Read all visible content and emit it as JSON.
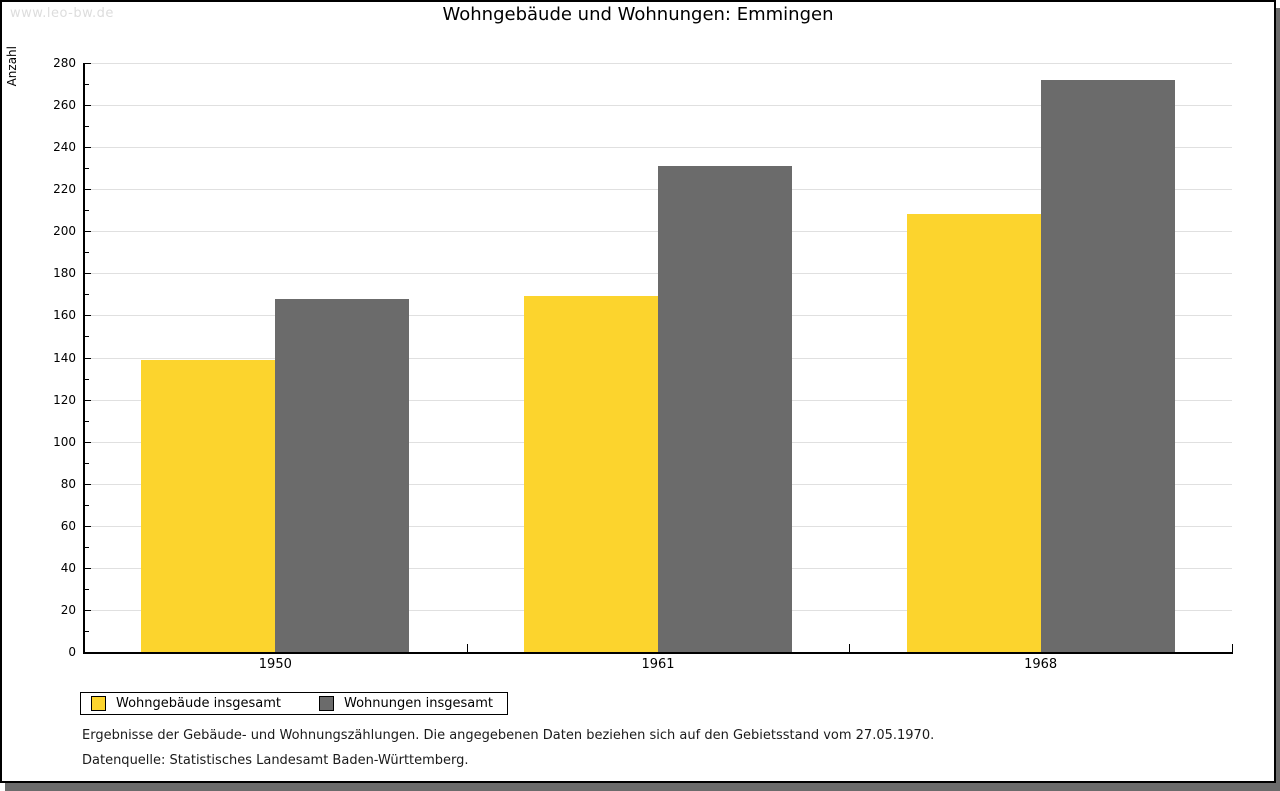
{
  "page": {
    "watermark": "www.leo-bw.de",
    "title": "Wohngebäude und Wohnungen: Emmingen",
    "footnote_1": "Ergebnisse der Gebäude- und Wohnungszählungen. Die angegebenen Daten beziehen sich auf den Gebietsstand vom 27.05.1970.",
    "footnote_2": "Datenquelle: Statistisches Landesamt Baden-Württemberg."
  },
  "colors": {
    "bar_yellow": "#fcd42d",
    "bar_gray": "#6b6b6b",
    "gridline": "#e0e0e0",
    "axis": "#000000",
    "watermark_gray": "#dddddd",
    "shadow_gray": "#6b6b6b"
  },
  "chart_data": {
    "type": "bar",
    "title": "Wohngebäude und Wohnungen: Emmingen",
    "categories": [
      "1950",
      "1961",
      "1968"
    ],
    "series": [
      {
        "name": "Wohngebäude insgesamt",
        "color": "#fcd42d",
        "values": [
          139,
          169,
          208
        ]
      },
      {
        "name": "Wohnungen insgesamt",
        "color": "#6b6b6b",
        "values": [
          168,
          231,
          272
        ]
      }
    ],
    "xlabel": "",
    "ylabel": "Anzahl",
    "ylim": [
      0,
      280
    ],
    "ytick_step": 20,
    "yminor_step": 10,
    "grid": true,
    "legend_position": "bottom-left"
  }
}
